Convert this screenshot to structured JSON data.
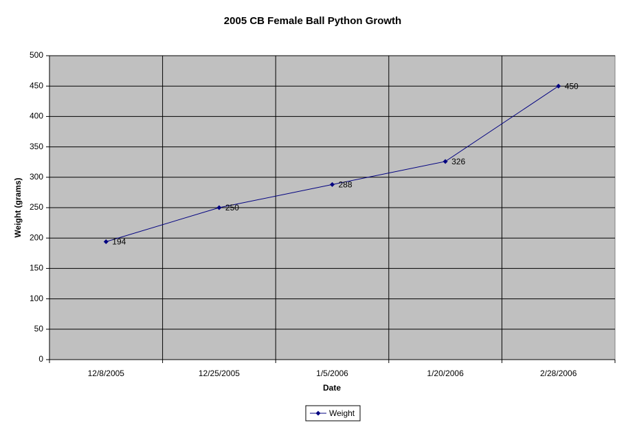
{
  "chart_data": {
    "type": "line",
    "title": "2005 CB Female Ball Python Growth",
    "categories": [
      "12/8/2005",
      "12/25/2005",
      "1/5/2006",
      "1/20/2006",
      "2/28/2006"
    ],
    "series": [
      {
        "name": "Weight",
        "color": "#000080",
        "values": [
          194,
          250,
          288,
          326,
          450
        ]
      }
    ],
    "x_label": "Date",
    "y_label": "Weight (grams)",
    "ylim": [
      0,
      500
    ],
    "yticks": [
      0,
      50,
      100,
      150,
      200,
      250,
      300,
      350,
      400,
      450,
      500
    ],
    "grid": true,
    "data_labels": true,
    "legend": "bottom",
    "plot_background": "#c0c0c0"
  }
}
